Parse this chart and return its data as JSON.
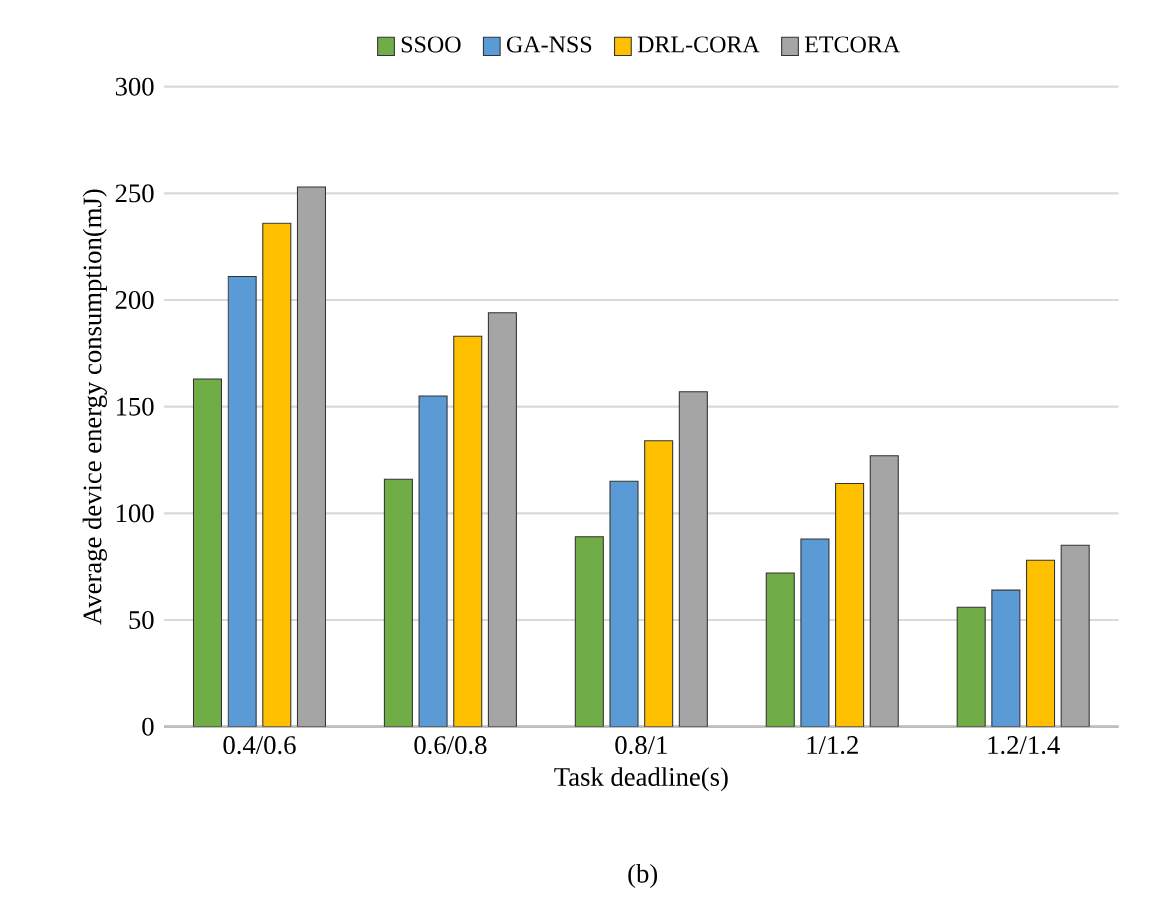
{
  "chart_data": {
    "type": "bar",
    "xlabel": "Task deadline(s)",
    "ylabel": "Average device energy consumption(mJ)",
    "categories": [
      "0.4/0.6",
      "0.6/0.8",
      "0.8/1",
      "1/1.2",
      "1.2/1.4"
    ],
    "series": [
      {
        "name": "SSOO",
        "color": "#70ad47",
        "values": [
          163,
          116,
          89,
          72,
          56
        ]
      },
      {
        "name": "GA-NSS",
        "color": "#5b9bd5",
        "values": [
          211,
          155,
          115,
          88,
          64
        ]
      },
      {
        "name": "DRL-CORA",
        "color": "#ffc000",
        "values": [
          236,
          183,
          134,
          114,
          78
        ]
      },
      {
        "name": "ETCORA",
        "color": "#a5a5a5",
        "values": [
          253,
          194,
          157,
          127,
          85
        ]
      }
    ],
    "ylim": [
      0,
      300
    ],
    "yticks": [
      0,
      50,
      100,
      150,
      200,
      250,
      300
    ],
    "grid": "y",
    "legend": "top",
    "annotations": [
      "(b)"
    ]
  }
}
